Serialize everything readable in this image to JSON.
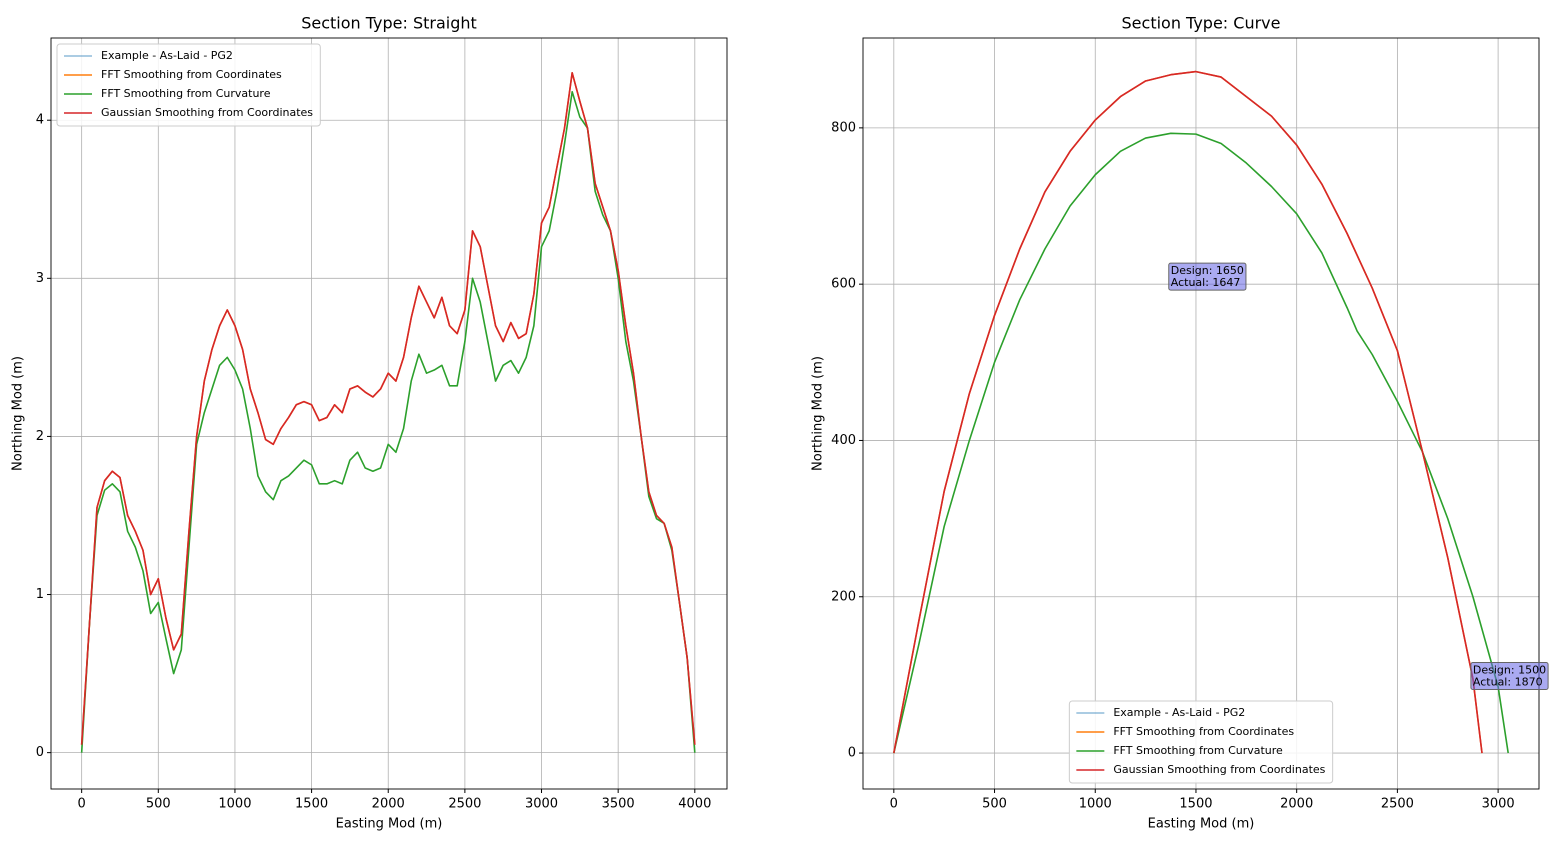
{
  "chart_data": [
    {
      "type": "line",
      "title": "Section Type: Straight",
      "xlabel": "Easting Mod (m)",
      "ylabel": "Northing Mod (m)",
      "xlim": [
        -200,
        4210
      ],
      "ylim": [
        -0.23,
        4.52
      ],
      "xticks": [
        0,
        500,
        1000,
        1500,
        2000,
        2500,
        3000,
        3500,
        4000
      ],
      "yticks": [
        0,
        1,
        2,
        3,
        4
      ],
      "grid": true,
      "legend": "upper left",
      "x": [
        0,
        50,
        100,
        150,
        200,
        250,
        300,
        350,
        400,
        450,
        500,
        550,
        600,
        650,
        700,
        750,
        800,
        850,
        900,
        950,
        1000,
        1050,
        1100,
        1150,
        1200,
        1250,
        1300,
        1350,
        1400,
        1450,
        1500,
        1550,
        1600,
        1650,
        1700,
        1750,
        1800,
        1850,
        1900,
        1950,
        2000,
        2050,
        2100,
        2150,
        2200,
        2250,
        2300,
        2350,
        2400,
        2450,
        2500,
        2550,
        2600,
        2650,
        2700,
        2750,
        2800,
        2850,
        2900,
        2950,
        3000,
        3050,
        3100,
        3150,
        3200,
        3250,
        3300,
        3350,
        3400,
        3450,
        3500,
        3550,
        3600,
        3650,
        3700,
        3750,
        3800,
        3850,
        3900,
        3950,
        4000
      ],
      "series": [
        {
          "name": "Example - As-Laid - PG2",
          "color": "#1f77b4",
          "values": [
            0.05,
            0.8,
            1.55,
            1.72,
            1.78,
            1.74,
            1.5,
            1.4,
            1.28,
            1.0,
            1.1,
            0.85,
            0.65,
            0.75,
            1.4,
            2.0,
            2.35,
            2.55,
            2.7,
            2.8,
            2.7,
            2.55,
            2.3,
            2.15,
            1.98,
            1.95,
            2.05,
            2.12,
            2.2,
            2.22,
            2.2,
            2.1,
            2.12,
            2.2,
            2.15,
            2.3,
            2.32,
            2.28,
            2.25,
            2.3,
            2.4,
            2.35,
            2.5,
            2.75,
            2.95,
            2.85,
            2.75,
            2.88,
            2.7,
            2.65,
            2.8,
            3.3,
            3.2,
            2.95,
            2.7,
            2.6,
            2.72,
            2.62,
            2.65,
            2.9,
            3.35,
            3.45,
            3.7,
            3.95,
            4.3,
            4.12,
            3.95,
            3.6,
            3.45,
            3.3,
            3.05,
            2.7,
            2.4,
            2.0,
            1.65,
            1.5,
            1.45,
            1.3,
            0.95,
            0.6,
            0.05
          ]
        },
        {
          "name": "FFT Smoothing from Coordinates",
          "color": "#ff7f0e",
          "values": [
            0.05,
            0.8,
            1.55,
            1.72,
            1.78,
            1.74,
            1.5,
            1.4,
            1.28,
            1.0,
            1.1,
            0.85,
            0.65,
            0.75,
            1.4,
            2.0,
            2.35,
            2.55,
            2.7,
            2.8,
            2.7,
            2.55,
            2.3,
            2.15,
            1.98,
            1.95,
            2.05,
            2.12,
            2.2,
            2.22,
            2.2,
            2.1,
            2.12,
            2.2,
            2.15,
            2.3,
            2.32,
            2.28,
            2.25,
            2.3,
            2.4,
            2.35,
            2.5,
            2.75,
            2.95,
            2.85,
            2.75,
            2.88,
            2.7,
            2.65,
            2.8,
            3.3,
            3.2,
            2.95,
            2.7,
            2.6,
            2.72,
            2.62,
            2.65,
            2.9,
            3.35,
            3.45,
            3.7,
            3.95,
            4.3,
            4.12,
            3.95,
            3.6,
            3.45,
            3.3,
            3.05,
            2.7,
            2.4,
            2.0,
            1.65,
            1.5,
            1.45,
            1.3,
            0.95,
            0.6,
            0.05
          ]
        },
        {
          "name": "FFT Smoothing from Curvature",
          "color": "#2ca02c",
          "values": [
            0,
            0.8,
            1.5,
            1.66,
            1.7,
            1.65,
            1.4,
            1.3,
            1.15,
            0.88,
            0.95,
            0.72,
            0.5,
            0.65,
            1.3,
            1.95,
            2.15,
            2.3,
            2.45,
            2.5,
            2.42,
            2.3,
            2.05,
            1.75,
            1.65,
            1.6,
            1.72,
            1.75,
            1.8,
            1.85,
            1.82,
            1.7,
            1.7,
            1.72,
            1.7,
            1.85,
            1.9,
            1.8,
            1.78,
            1.8,
            1.95,
            1.9,
            2.05,
            2.35,
            2.52,
            2.4,
            2.42,
            2.45,
            2.32,
            2.32,
            2.6,
            3.0,
            2.85,
            2.6,
            2.35,
            2.45,
            2.48,
            2.4,
            2.5,
            2.7,
            3.2,
            3.3,
            3.55,
            3.85,
            4.18,
            4.02,
            3.95,
            3.55,
            3.4,
            3.3,
            3.0,
            2.6,
            2.35,
            2.0,
            1.62,
            1.48,
            1.45,
            1.28,
            0.95,
            0.6,
            0
          ]
        },
        {
          "name": "Gaussian Smoothing from Coordinates",
          "color": "#d62728",
          "values": [
            0.05,
            0.8,
            1.55,
            1.72,
            1.78,
            1.74,
            1.5,
            1.4,
            1.28,
            1.0,
            1.1,
            0.85,
            0.65,
            0.75,
            1.4,
            2.0,
            2.35,
            2.55,
            2.7,
            2.8,
            2.7,
            2.55,
            2.3,
            2.15,
            1.98,
            1.95,
            2.05,
            2.12,
            2.2,
            2.22,
            2.2,
            2.1,
            2.12,
            2.2,
            2.15,
            2.3,
            2.32,
            2.28,
            2.25,
            2.3,
            2.4,
            2.35,
            2.5,
            2.75,
            2.95,
            2.85,
            2.75,
            2.88,
            2.7,
            2.65,
            2.8,
            3.3,
            3.2,
            2.95,
            2.7,
            2.6,
            2.72,
            2.62,
            2.65,
            2.9,
            3.35,
            3.45,
            3.7,
            3.95,
            4.3,
            4.12,
            3.95,
            3.6,
            3.45,
            3.3,
            3.05,
            2.7,
            2.4,
            2.0,
            1.65,
            1.5,
            1.45,
            1.3,
            0.95,
            0.6,
            0.05
          ]
        }
      ]
    },
    {
      "type": "line",
      "title": "Section Type: Curve",
      "xlabel": "Easting Mod (m)",
      "ylabel": "Northing Mod (m)",
      "xlim": [
        -153,
        3203
      ],
      "ylim": [
        -46,
        915
      ],
      "xticks": [
        0,
        500,
        1000,
        1500,
        2000,
        2500,
        3000
      ],
      "yticks": [
        0,
        200,
        400,
        600,
        800
      ],
      "grid": true,
      "legend": "lower center",
      "annotations": [
        {
          "lines": [
            "Design: 1650",
            "Actual: 1647"
          ],
          "x": 1360,
          "y": 609
        },
        {
          "lines": [
            "Design: 1500",
            "Actual: 1870"
          ],
          "x": 2860,
          "y": 98
        }
      ],
      "series": [
        {
          "name": "Example - As-Laid - PG2",
          "color": "#1f77b4",
          "x": [
            0,
            125,
            250,
            375,
            500,
            625,
            750,
            875,
            1000,
            1125,
            1250,
            1375,
            1500,
            1625,
            1750,
            1875,
            2000,
            2125,
            2250,
            2375,
            2500,
            2625,
            2750,
            2875,
            2920
          ],
          "values": [
            0,
            170,
            335,
            460,
            560,
            645,
            718,
            770,
            810,
            840,
            860,
            868,
            872,
            865,
            840,
            815,
            778,
            728,
            665,
            595,
            515,
            385,
            250,
            95,
            0
          ]
        },
        {
          "name": "FFT Smoothing from Coordinates",
          "color": "#ff7f0e",
          "x": [
            0,
            125,
            250,
            375,
            500,
            625,
            750,
            875,
            1000,
            1125,
            1250,
            1375,
            1500,
            1625,
            1750,
            1875,
            2000,
            2125,
            2250,
            2375,
            2500,
            2625,
            2750,
            2875,
            2920
          ],
          "values": [
            0,
            170,
            335,
            460,
            560,
            645,
            718,
            770,
            810,
            840,
            860,
            868,
            872,
            865,
            840,
            815,
            778,
            728,
            665,
            595,
            515,
            385,
            250,
            95,
            0
          ]
        },
        {
          "name": "FFT Smoothing from Curvature",
          "color": "#2ca02c",
          "x": [
            0,
            125,
            250,
            375,
            500,
            625,
            750,
            875,
            1000,
            1125,
            1250,
            1375,
            1500,
            1625,
            1750,
            1875,
            2000,
            2125,
            2250,
            2300,
            2375,
            2500,
            2625,
            2750,
            2875,
            3000,
            3050
          ],
          "values": [
            0,
            140,
            290,
            400,
            500,
            580,
            645,
            700,
            740,
            770,
            787,
            793,
            792,
            780,
            755,
            725,
            690,
            640,
            570,
            540,
            510,
            450,
            385,
            300,
            200,
            85,
            0
          ]
        },
        {
          "name": "Gaussian Smoothing from Coordinates",
          "color": "#d62728",
          "x": [
            0,
            125,
            250,
            375,
            500,
            625,
            750,
            875,
            1000,
            1125,
            1250,
            1375,
            1500,
            1625,
            1750,
            1875,
            2000,
            2125,
            2250,
            2375,
            2500,
            2625,
            2750,
            2875,
            2920
          ],
          "values": [
            0,
            170,
            335,
            460,
            560,
            645,
            718,
            770,
            810,
            840,
            860,
            868,
            872,
            865,
            840,
            815,
            778,
            728,
            665,
            595,
            515,
            385,
            250,
            95,
            0
          ]
        }
      ]
    }
  ]
}
